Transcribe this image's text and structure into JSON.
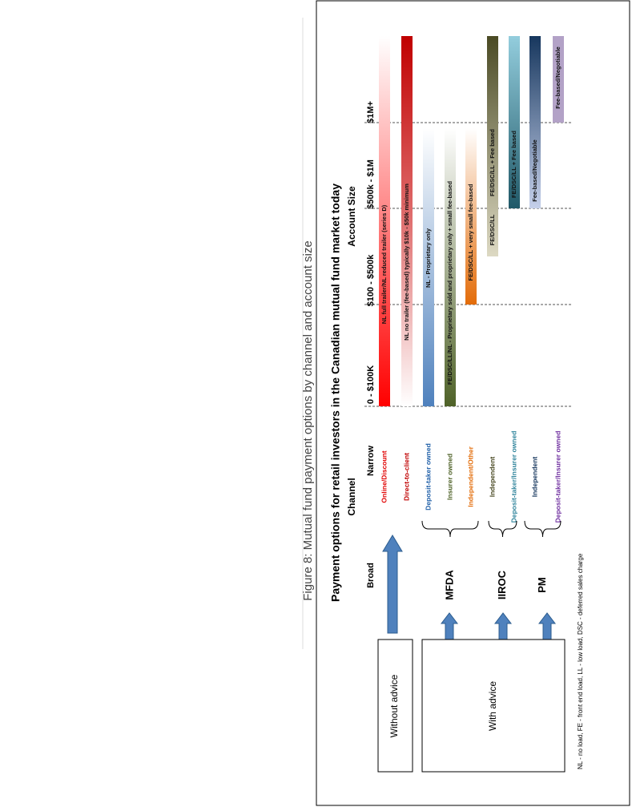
{
  "caption": "Figure 8: Mutual fund payment options by channel and account size",
  "title": "Payment options for retail investors in the Canadian mutual fund market today",
  "channel_heading": "Channel",
  "account_heading": "Account Size",
  "broad": "Broad",
  "narrow": "Narrow",
  "size_columns": [
    "0 - $100K",
    "$100 - $500k",
    "$500k - $1M",
    "$1M+"
  ],
  "rows": [
    {
      "channel": "Online/Discount",
      "options": [
        "NL full trailer/NL reduced trailer (series D)"
      ]
    },
    {
      "channel": "Direct-to-client",
      "options": [
        "NL no trailer (fee-based) typically $10k - $50k minimum"
      ]
    },
    {
      "channel": "Deposit-taker owned",
      "options": [
        "NL - Proprietary only"
      ]
    },
    {
      "channel": "Insurer owned",
      "options": [
        "FE/DSC/LL/NL - Proprietary sold and proprietary only + small fee-based"
      ]
    },
    {
      "channel": "Independent/Other",
      "options": [
        "FE/DSC/LL + very small fee-based"
      ]
    },
    {
      "channel": "Independent",
      "options": [
        "FE/DSC/LL",
        "FE/DSC/LL + Fee based"
      ]
    },
    {
      "channel": "Deposit-taker/Insurer owned",
      "options": [
        "FE/DSC/LL + Fee based"
      ]
    },
    {
      "channel": "Independent",
      "options": [
        "Fee-based/Negotiable"
      ]
    },
    {
      "channel": "Deposit-taker/Insurer owned",
      "options": [
        "Fee-based/Negotiable"
      ]
    }
  ],
  "groups": [
    "MFDA",
    "IIROC",
    "PM"
  ],
  "boxes": [
    "Without advice",
    "With advice"
  ],
  "footnote": "NL - no load, FE - front end load, LL - low load, DSC - deferred sales charge"
}
